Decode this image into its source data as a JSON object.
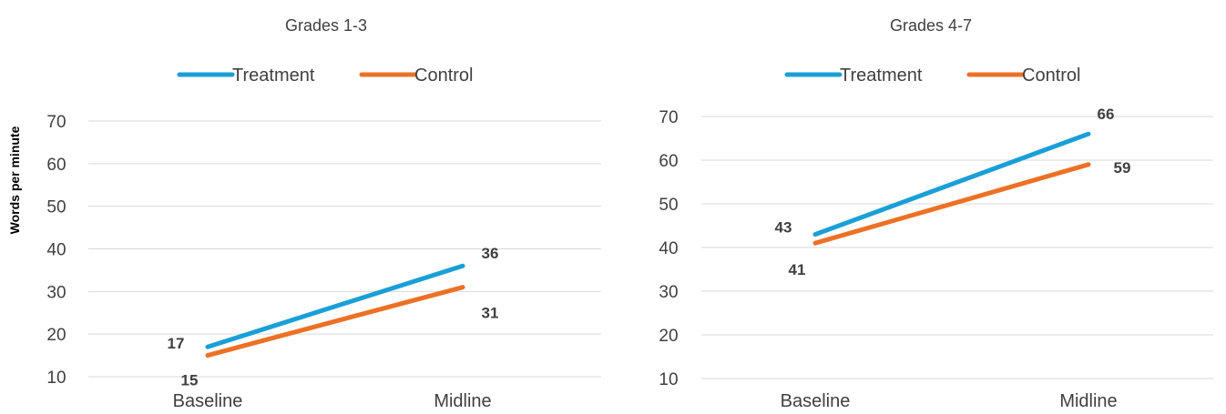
{
  "y_axis_label": "Words per minute",
  "colors": {
    "treatment": "#1a9fd6",
    "control": "#ec7125"
  },
  "chart_data": [
    {
      "type": "line",
      "title": "Grades 1-3",
      "categories": [
        "Baseline",
        "Midline"
      ],
      "series": [
        {
          "name": "Treatment",
          "values": [
            17,
            36
          ]
        },
        {
          "name": "Control",
          "values": [
            15,
            31
          ]
        }
      ],
      "ylabel": "Words per minute",
      "ylim": [
        10,
        70
      ],
      "yticks": [
        10,
        20,
        30,
        40,
        50,
        60,
        70
      ],
      "grid": true,
      "legend": "top"
    },
    {
      "type": "line",
      "title": "Grades 4-7",
      "categories": [
        "Baseline",
        "Midline"
      ],
      "series": [
        {
          "name": "Treatment",
          "values": [
            43,
            66
          ]
        },
        {
          "name": "Control",
          "values": [
            41,
            59
          ]
        }
      ],
      "ylabel": "",
      "ylim": [
        10,
        70
      ],
      "yticks": [
        10,
        20,
        30,
        40,
        50,
        60,
        70
      ],
      "grid": true,
      "legend": "top"
    }
  ]
}
